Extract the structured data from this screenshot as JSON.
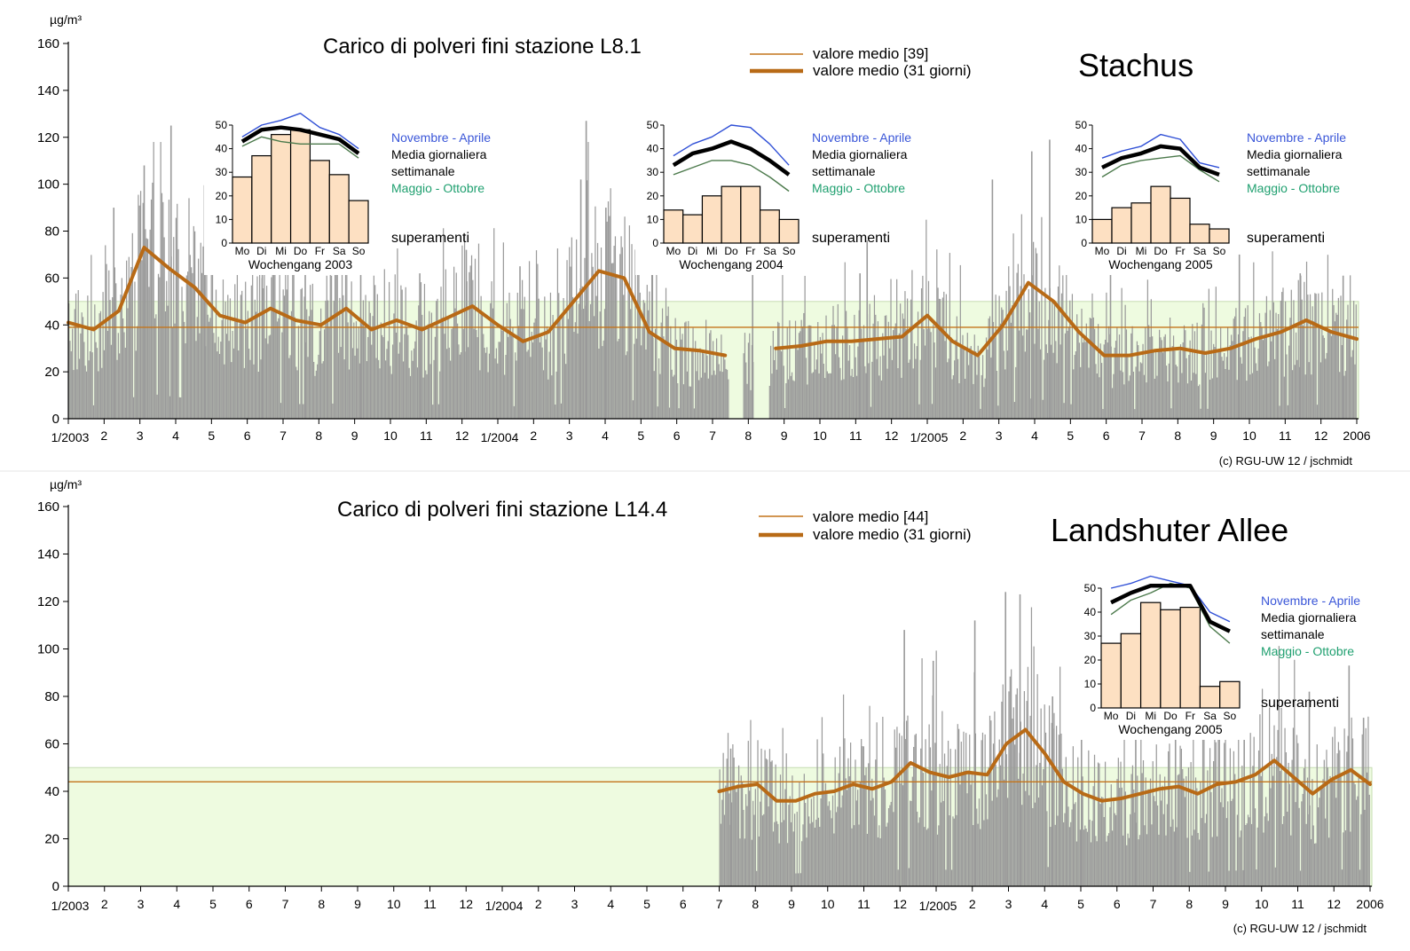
{
  "chart_data": [
    {
      "type": "bar",
      "title": "Carico di polveri fini stazione L8.1",
      "station_name": "Stachus",
      "unit_label": "µg/m³",
      "ylim": [
        0,
        160
      ],
      "yticks": [
        "0",
        "20",
        "40",
        "60",
        "80",
        "100",
        "120",
        "140",
        "160"
      ],
      "x_tick_labels": [
        "1/2003",
        "2",
        "3",
        "4",
        "5",
        "6",
        "7",
        "8",
        "9",
        "10",
        "11",
        "12",
        "1/2004",
        "2",
        "3",
        "4",
        "5",
        "6",
        "7",
        "8",
        "9",
        "10",
        "11",
        "12",
        "1/2005",
        "2",
        "3",
        "4",
        "5",
        "6",
        "7",
        "8",
        "9",
        "10",
        "11",
        "12",
        "2006"
      ],
      "limit_band": [
        0,
        50
      ],
      "legend": [
        "valore medio [39]",
        "valore medio (31 giorni)"
      ],
      "mean_value": 39,
      "data_start_month": 0,
      "data_end_month": 36,
      "gaps": [
        [
          18.45,
          18.85
        ],
        [
          19.15,
          19.55
        ]
      ],
      "series": [
        {
          "name": "valore medio (31 giorni)",
          "values": [
            41,
            38,
            46,
            73,
            64,
            56,
            44,
            41,
            47,
            42,
            40,
            47,
            38,
            42,
            38,
            43,
            48,
            40,
            33,
            37,
            50,
            63,
            60,
            37,
            30,
            29,
            27,
            25,
            30,
            31,
            33,
            33,
            34,
            35,
            44,
            33,
            27,
            40,
            58,
            50,
            37,
            27,
            27,
            29,
            30,
            28,
            30,
            34,
            37,
            42,
            37,
            34
          ]
        }
      ],
      "peaks": [
        [
          2.85,
          125
        ],
        [
          2.1,
          108
        ],
        [
          1.25,
          90
        ],
        [
          3.8,
          87
        ],
        [
          5.4,
          79
        ],
        [
          6.6,
          70
        ],
        [
          8.15,
          70
        ],
        [
          9.8,
          62
        ],
        [
          11.1,
          72
        ],
        [
          12.6,
          65
        ],
        [
          14.3,
          102
        ],
        [
          14.45,
          127
        ],
        [
          15.0,
          90
        ],
        [
          16.3,
          62
        ],
        [
          19.1,
          66
        ],
        [
          22.1,
          62
        ],
        [
          22.3,
          76
        ],
        [
          25.8,
          102
        ],
        [
          26.9,
          114
        ],
        [
          27.4,
          119
        ],
        [
          29.1,
          63
        ],
        [
          32.7,
          70
        ],
        [
          34.4,
          62
        ],
        [
          35.6,
          61
        ]
      ],
      "footer": "(c) RGU-UW 12 / jschmidt",
      "insets": [
        {
          "days": [
            "Mo",
            "Di",
            "Mi",
            "Do",
            "Fr",
            "Sa",
            "So"
          ],
          "values": [
            28,
            37,
            46,
            48,
            35,
            29,
            18
          ],
          "line_winter": [
            45,
            50,
            52,
            55,
            49,
            46,
            40
          ],
          "line_avg": [
            43,
            48,
            49,
            48,
            46,
            44,
            38
          ],
          "line_summer": [
            41,
            45,
            43,
            42,
            42,
            42,
            36
          ],
          "ylim": [
            0,
            50
          ],
          "yticks": [
            "0",
            "10",
            "20",
            "30",
            "40",
            "50"
          ],
          "title": "Wochengang 2003",
          "legend": [
            "Novembre - Aprile",
            "Media giornaliera",
            "settimanale",
            "Maggio - Ottobre"
          ],
          "exceed_label": "superamenti"
        },
        {
          "days": [
            "Mo",
            "Di",
            "Mi",
            "Do",
            "Fr",
            "Sa",
            "So"
          ],
          "values": [
            14,
            12,
            20,
            24,
            24,
            14,
            10
          ],
          "line_winter": [
            37,
            42,
            45,
            50,
            49,
            42,
            33
          ],
          "line_avg": [
            33,
            38,
            40,
            43,
            40,
            35,
            29
          ],
          "line_summer": [
            29,
            32,
            35,
            35,
            33,
            28,
            22
          ],
          "ylim": [
            0,
            50
          ],
          "yticks": [
            "0",
            "10",
            "20",
            "30",
            "40",
            "50"
          ],
          "title": "Wochengang 2004",
          "legend": [
            "Novembre - Aprile",
            "Media giornaliera",
            "settimanale",
            "Maggio - Ottobre"
          ],
          "exceed_label": "superamenti"
        },
        {
          "days": [
            "Mo",
            "Di",
            "Mi",
            "Do",
            "Fr",
            "Sa",
            "So"
          ],
          "values": [
            10,
            15,
            17,
            24,
            19,
            8,
            6
          ],
          "line_winter": [
            36,
            39,
            41,
            46,
            44,
            34,
            32
          ],
          "line_avg": [
            32,
            36,
            38,
            41,
            40,
            32,
            29
          ],
          "line_summer": [
            28,
            33,
            35,
            36,
            37,
            31,
            26
          ],
          "ylim": [
            0,
            50
          ],
          "yticks": [
            "0",
            "10",
            "20",
            "30",
            "40",
            "50"
          ],
          "title": "Wochengang 2005",
          "legend": [
            "Novembre - Aprile",
            "Media giornaliera",
            "settimanale",
            "Maggio - Ottobre"
          ],
          "exceed_label": "superamenti"
        }
      ]
    },
    {
      "type": "bar",
      "title": "Carico di polveri fini stazione L14.4",
      "station_name": "Landshuter Allee",
      "unit_label": "µg/m³",
      "ylim": [
        0,
        160
      ],
      "yticks": [
        "0",
        "20",
        "40",
        "60",
        "80",
        "100",
        "120",
        "140",
        "160"
      ],
      "x_tick_labels": [
        "1/2003",
        "2",
        "3",
        "4",
        "5",
        "6",
        "7",
        "8",
        "9",
        "10",
        "11",
        "12",
        "1/2004",
        "2",
        "3",
        "4",
        "5",
        "6",
        "7",
        "8",
        "9",
        "10",
        "11",
        "12",
        "1/2005",
        "2",
        "3",
        "4",
        "5",
        "6",
        "7",
        "8",
        "9",
        "10",
        "11",
        "12",
        "2006"
      ],
      "limit_band": [
        0,
        50
      ],
      "legend": [
        "valore medio [44]",
        "valore medio (31 giorni)"
      ],
      "mean_value": 44,
      "data_start_month": 18,
      "data_end_month": 36,
      "gaps": [],
      "series": [
        {
          "name": "valore medio (31 giorni)",
          "values": [
            40,
            42,
            43,
            36,
            36,
            39,
            40,
            43,
            41,
            44,
            52,
            48,
            46,
            48,
            47,
            60,
            66,
            56,
            44,
            39,
            36,
            37,
            39,
            41,
            42,
            39,
            43,
            44,
            47,
            53,
            46,
            39,
            45,
            49,
            43
          ]
        }
      ],
      "peaks": [
        [
          18.3,
          58
        ],
        [
          23.1,
          108
        ],
        [
          23.9,
          95
        ],
        [
          25.05,
          112
        ],
        [
          25.9,
          124
        ],
        [
          26.3,
          123
        ],
        [
          27.2,
          80
        ],
        [
          28.0,
          74
        ],
        [
          29.5,
          70
        ],
        [
          30.6,
          74
        ],
        [
          32.5,
          80
        ],
        [
          34.3,
          82
        ],
        [
          35.4,
          93
        ],
        [
          35.8,
          71
        ]
      ],
      "footer": "(c) RGU-UW 12 / jschmidt",
      "insets": [
        {
          "days": [
            "Mo",
            "Di",
            "Mi",
            "Do",
            "Fr",
            "Sa",
            "So"
          ],
          "values": [
            27,
            31,
            44,
            41,
            42,
            9,
            11
          ],
          "line_winter": [
            50,
            52,
            55,
            53,
            51,
            40,
            36
          ],
          "line_avg": [
            44,
            48,
            51,
            51,
            51,
            36,
            32
          ],
          "line_summer": [
            39,
            45,
            48,
            52,
            50,
            34,
            27
          ],
          "ylim": [
            0,
            50
          ],
          "yticks": [
            "0",
            "10",
            "20",
            "30",
            "40",
            "50"
          ],
          "title": "Wochengang 2005",
          "legend": [
            "Novembre - Aprile",
            "Media giornaliera",
            "settimanale",
            "Maggio - Ottobre"
          ],
          "exceed_label": "superamenti"
        }
      ]
    }
  ],
  "colors": {
    "bars": "#9a9a9a",
    "band": "#eefbe0",
    "band_edge": "#c6dcb2",
    "mean_line": "#c4741a",
    "moving_avg": "#b86a16",
    "inset_bars": "#fde0c2",
    "winter_line": "#2f4fd6",
    "avg_line": "#000000",
    "summer_line": "#4c7a4c",
    "winter_text": "#3a56d8",
    "summer_text": "#20a070"
  }
}
